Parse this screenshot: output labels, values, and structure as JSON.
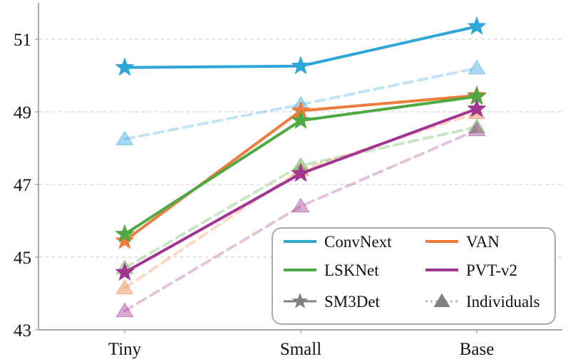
{
  "chart_data": {
    "type": "line",
    "title": "",
    "xlabel": "",
    "ylabel": "",
    "categories": [
      "Tiny",
      "Small",
      "Base"
    ],
    "ylim": [
      43,
      52
    ],
    "yticks": [
      43,
      45,
      47,
      49,
      51
    ],
    "grid": "horizontal dashed",
    "legend_position": "bottom-right",
    "series": [
      {
        "name": "ConvNext",
        "style": "SM3Det",
        "color": "#2ea6d8",
        "values": [
          50.22,
          50.26,
          51.35
        ]
      },
      {
        "name": "VAN",
        "style": "SM3Det",
        "color": "#ee7d3d",
        "values": [
          45.45,
          49.03,
          49.45
        ]
      },
      {
        "name": "LSKNet",
        "style": "SM3Det",
        "color": "#4ea843",
        "values": [
          45.63,
          48.76,
          49.42
        ]
      },
      {
        "name": "PVT-v2",
        "style": "SM3Det",
        "color": "#a23592",
        "values": [
          44.58,
          47.3,
          49.08
        ]
      },
      {
        "name": "ConvNext",
        "style": "Individuals",
        "color": "#2ea6d8",
        "values": [
          48.25,
          49.2,
          50.2
        ]
      },
      {
        "name": "VAN",
        "style": "Individuals",
        "color": "#ee7d3d",
        "values": [
          44.15,
          47.4,
          48.97
        ]
      },
      {
        "name": "LSKNet",
        "style": "Individuals",
        "color": "#4ea843",
        "values": [
          44.7,
          47.52,
          48.58
        ]
      },
      {
        "name": "PVT-v2",
        "style": "Individuals",
        "color": "#a23592",
        "values": [
          43.52,
          46.4,
          48.5
        ]
      }
    ],
    "legend": {
      "entries": [
        {
          "label": "ConvNext",
          "color": "#2ea6d8",
          "marker": "line"
        },
        {
          "label": "VAN",
          "color": "#ee7d3d",
          "marker": "line"
        },
        {
          "label": "LSKNet",
          "color": "#4ea843",
          "marker": "line"
        },
        {
          "label": "PVT-v2",
          "color": "#a23592",
          "marker": "line"
        },
        {
          "label": "SM3Det",
          "color": "#808080",
          "marker": "star-solid"
        },
        {
          "label": "Individuals",
          "color": "#808080",
          "marker": "triangle-dotted"
        }
      ]
    }
  }
}
